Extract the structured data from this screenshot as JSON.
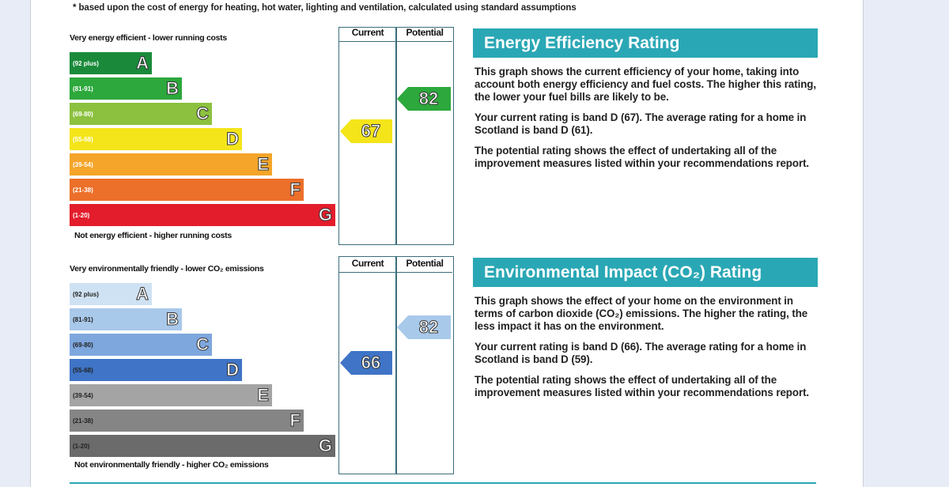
{
  "footnote": "* based upon the cost of energy for heating, hot water, lighting and ventilation, calculated using standard assumptions",
  "energy": {
    "top_label": "Very energy efficient - lower running costs",
    "bottom_label": "Not energy efficient - higher running costs",
    "col_current": "Current",
    "col_potential": "Potential",
    "current": "67",
    "potential": "82",
    "bands": [
      {
        "range": "(92 plus)",
        "letter": "A",
        "color": "#1a8a3a"
      },
      {
        "range": "(81-91)",
        "letter": "B",
        "color": "#2ca83c"
      },
      {
        "range": "(69-80)",
        "letter": "C",
        "color": "#8cc13f"
      },
      {
        "range": "(55-68)",
        "letter": "D",
        "color": "#f4e51a"
      },
      {
        "range": "(39-54)",
        "letter": "E",
        "color": "#f4a52a"
      },
      {
        "range": "(21-38)",
        "letter": "F",
        "color": "#ec6f2a"
      },
      {
        "range": "(1-20)",
        "letter": "G",
        "color": "#e31d2c"
      }
    ],
    "info": {
      "title": "Energy Efficiency Rating",
      "p1": "This graph shows the current efficiency of your home, taking into account both energy efficiency and fuel costs. The higher this rating, the lower your fuel bills are likely to be.",
      "p2_a": "Your current rating is ",
      "p2_b": "band D (67)",
      "p2_c": ". The average rating for a home in Scotland is ",
      "p2_d": "band D (61)",
      "p2_e": ".",
      "p3": "The potential rating shows the effect of undertaking all of the improvement measures listed within your recommendations report."
    }
  },
  "environment": {
    "top_label": "Very environmentally friendly - lower CO₂ emissions",
    "bottom_label": "Not environmentally friendly - higher CO₂ emissions",
    "col_current": "Current",
    "col_potential": "Potential",
    "current": "66",
    "potential": "82",
    "bands": [
      {
        "range": "(92 plus)",
        "letter": "A",
        "color": "#cfe2f3"
      },
      {
        "range": "(81-91)",
        "letter": "B",
        "color": "#a9c9ea"
      },
      {
        "range": "(69-80)",
        "letter": "C",
        "color": "#7ea7dd"
      },
      {
        "range": "(55-68)",
        "letter": "D",
        "color": "#3f74c6"
      },
      {
        "range": "(39-54)",
        "letter": "E",
        "color": "#a4a4a4"
      },
      {
        "range": "(21-38)",
        "letter": "F",
        "color": "#858585"
      },
      {
        "range": "(1-20)",
        "letter": "G",
        "color": "#6b6b6b"
      }
    ],
    "info": {
      "title": "Environmental Impact (CO₂) Rating",
      "p1": "This graph shows the effect of your home on the environment in terms of carbon dioxide (CO₂) emissions. The higher the rating, the less impact it has on the environment.",
      "p2_a": "Your current rating is ",
      "p2_b": "band D (66)",
      "p2_c": ". The average rating for a home in Scotland is ",
      "p2_d": "band D (59)",
      "p2_e": ".",
      "p3": "The potential rating shows the effect of undertaking all of the improvement measures listed within your recommendations report."
    }
  },
  "colors": {
    "accent": "#2aa7b5",
    "energy_current_arrow": "#f4e51a",
    "energy_potential_arrow": "#2ca83c",
    "env_current_arrow": "#3f74c6",
    "env_potential_arrow": "#a9c9ea"
  }
}
